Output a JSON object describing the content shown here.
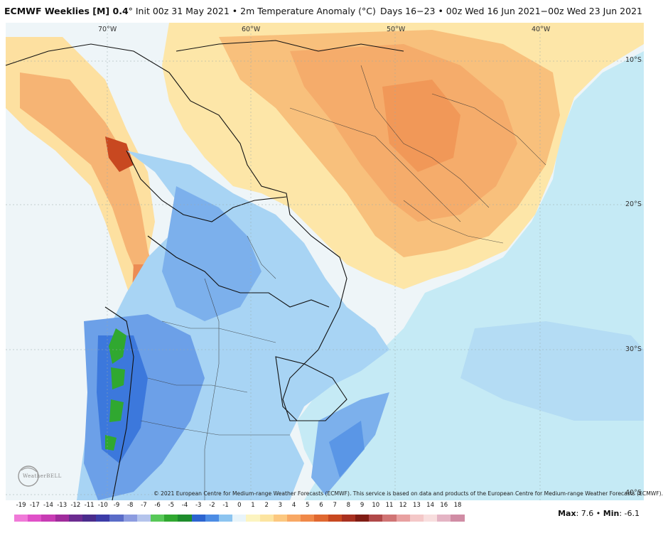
{
  "header": {
    "model": "ECMWF Weeklies [M] 0.4",
    "init": "° Init 00z 31 May 2021",
    "product": "• 2m Temperature Anomaly (°C)",
    "valid": "Days 16−23 • 00z Wed 16 Jun 2021−00z Wed 23 Jun 2021"
  },
  "map": {
    "longitude_labels": [
      "70°W",
      "60°W",
      "50°W",
      "40°W"
    ],
    "latitude_labels": [
      "10°S",
      "20°S",
      "30°S",
      "40°S"
    ],
    "copyright": "© 2021 European Centre for Medium-range Weather Forecasts (ECMWF). This service is based on data and products of the European Centre for Medium-range Weather Forecasts (ECMWF).",
    "logo": "WeatherBELL"
  },
  "colorbar": {
    "labels": [
      "-19",
      "-17",
      "-14",
      "-13",
      "-12",
      "-11",
      "-10",
      "-9",
      "-8",
      "-7",
      "-6",
      "-5",
      "-4",
      "-3",
      "-2",
      "-1",
      "0",
      "1",
      "2",
      "3",
      "4",
      "5",
      "6",
      "7",
      "8",
      "9",
      "10",
      "11",
      "12",
      "13",
      "14",
      "16",
      "18"
    ],
    "colors": [
      "#f07ad8",
      "#e050c8",
      "#c83cb4",
      "#a02c9c",
      "#6c2c90",
      "#4a2c8c",
      "#3c3ca8",
      "#5a6cc8",
      "#8c9ce0",
      "#b4c4ec",
      "#58c858",
      "#30a830",
      "#1e8c2c",
      "#2c64d0",
      "#4c8ce4",
      "#8cc4f0",
      "#e8f4fa",
      "#fcf4c0",
      "#fce4a0",
      "#fcc880",
      "#f8a864",
      "#f08848",
      "#e06830",
      "#c84820",
      "#a83020",
      "#801c14",
      "#b04848",
      "#d07474",
      "#e8a0a0",
      "#f4c8c8",
      "#f8dede",
      "#e4b4c4",
      "#d08ca4"
    ]
  },
  "stats": {
    "max_label": "Max",
    "max_value": "7.6",
    "min_label": "Min",
    "min_value": "-6.1"
  }
}
